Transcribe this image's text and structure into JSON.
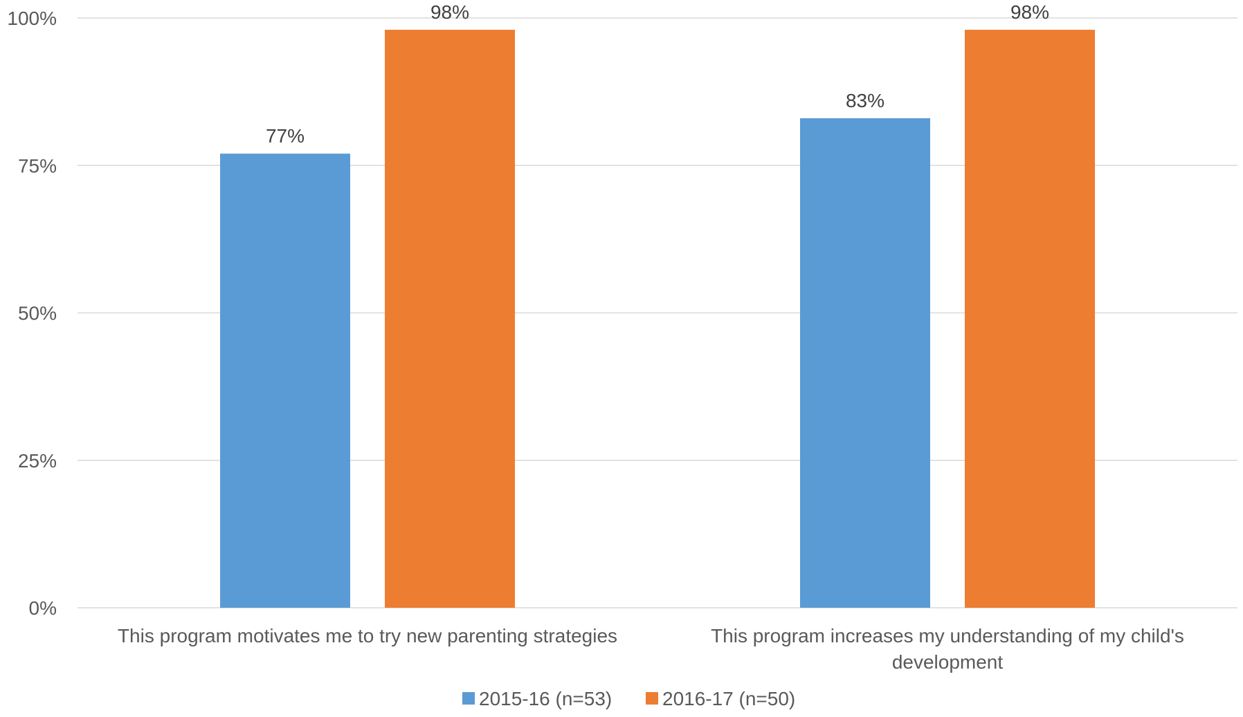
{
  "chart_data": {
    "type": "bar",
    "categories": [
      [
        "This program motivates me to try new parenting strategies"
      ],
      [
        "This program increases my understanding of my child's",
        "development"
      ]
    ],
    "series": [
      {
        "name": "2015-16 (n=53)",
        "values": [
          77,
          83
        ],
        "color": "#5B9BD5"
      },
      {
        "name": "2016-17 (n=50)",
        "values": [
          98,
          98
        ],
        "color": "#ED7D31"
      }
    ],
    "data_labels": [
      [
        "77%",
        "83%"
      ],
      [
        "98%",
        "98%"
      ]
    ],
    "y_ticks": [
      {
        "value": 0,
        "label": "0%"
      },
      {
        "value": 25,
        "label": "25%"
      },
      {
        "value": 50,
        "label": "50%"
      },
      {
        "value": 75,
        "label": "75%"
      },
      {
        "value": 100,
        "label": "100%"
      }
    ],
    "ylim": [
      0,
      100
    ],
    "grid": true,
    "legend_position": "bottom"
  }
}
